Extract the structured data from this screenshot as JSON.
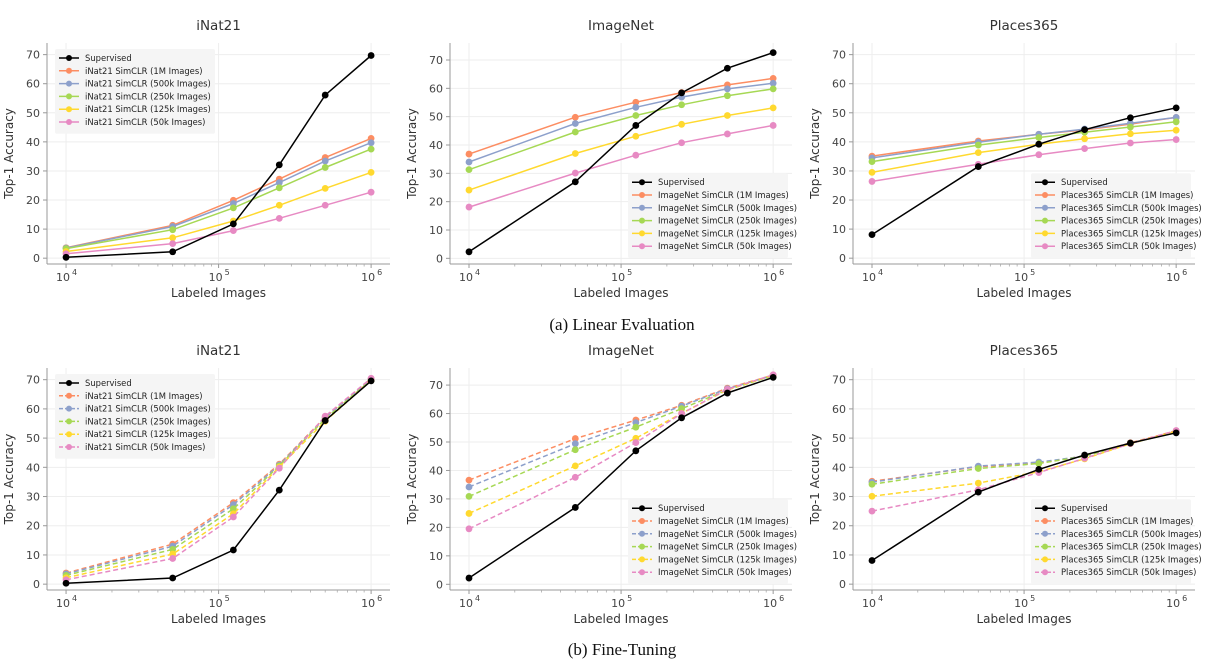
{
  "captions": [
    "(a) Linear Evaluation",
    "(b) Fine-Tuning"
  ],
  "series_colors": {
    "Supervised": "#000000",
    "1M": "#fc8d62",
    "500k": "#8da0cb",
    "250k": "#a6d854",
    "125k": "#ffd92f",
    "50k": "#e78ac3"
  },
  "chart_data": [
    {
      "type": "line",
      "row": 0,
      "col": 0,
      "title": "iNat21",
      "xlabel": "Labeled Images",
      "ylabel": "Top-1 Accuracy",
      "xscale": "log",
      "xlim": [
        7500,
        1330000
      ],
      "ylim": [
        -2,
        74
      ],
      "yticks": [
        0,
        10,
        20,
        30,
        40,
        50,
        60,
        70
      ],
      "xticks": [
        {
          "base": "10",
          "exp": "4",
          "value": 10000
        },
        {
          "base": "10",
          "exp": "5",
          "value": 100000
        },
        {
          "base": "10",
          "exp": "6",
          "value": 1000000
        }
      ],
      "legend": "top-left",
      "grid": true,
      "ssl_dashed": false,
      "x": [
        10000,
        50000,
        125000,
        250000,
        500000,
        1000000
      ],
      "series": [
        {
          "name": "Supervised",
          "key": "Supervised",
          "values": [
            0.3,
            2.2,
            11.8,
            32.1,
            56.1,
            69.7
          ]
        },
        {
          "name": "iNat21 SimCLR (1M Images)",
          "key": "1M",
          "values": [
            3.6,
            11.3,
            19.9,
            27.2,
            34.6,
            41.2
          ]
        },
        {
          "name": "iNat21 SimCLR (500k Images)",
          "key": "500k",
          "values": [
            3.5,
            10.9,
            18.8,
            26.0,
            33.4,
            39.7
          ]
        },
        {
          "name": "iNat21 SimCLR (250k Images)",
          "key": "250k",
          "values": [
            3.3,
            9.8,
            17.3,
            24.2,
            31.2,
            37.5
          ]
        },
        {
          "name": "iNat21 SimCLR (125k Images)",
          "key": "125k",
          "values": [
            2.3,
            7.0,
            12.8,
            18.2,
            24.0,
            29.5
          ]
        },
        {
          "name": "iNat21 SimCLR (50k Images)",
          "key": "50k",
          "values": [
            1.5,
            5.0,
            9.5,
            13.7,
            18.2,
            22.7
          ]
        }
      ]
    },
    {
      "type": "line",
      "row": 0,
      "col": 1,
      "title": "ImageNet",
      "xlabel": "Labeled Images",
      "ylabel": "Top-1 Accuracy",
      "xscale": "log",
      "xlim": [
        7500,
        1330000
      ],
      "ylim": [
        -2,
        76
      ],
      "yticks": [
        0,
        10,
        20,
        30,
        40,
        50,
        60,
        70
      ],
      "xticks": [
        {
          "base": "10",
          "exp": "4",
          "value": 10000
        },
        {
          "base": "10",
          "exp": "5",
          "value": 100000
        },
        {
          "base": "10",
          "exp": "6",
          "value": 1000000
        }
      ],
      "legend": "bottom-right",
      "grid": true,
      "ssl_dashed": false,
      "x": [
        10000,
        50000,
        125000,
        250000,
        500000,
        1000000
      ],
      "series": [
        {
          "name": "Supervised",
          "key": "Supervised",
          "values": [
            2.3,
            27.0,
            46.9,
            58.4,
            67.1,
            72.6
          ]
        },
        {
          "name": "ImageNet SimCLR (1M Images)",
          "key": "1M",
          "values": [
            36.8,
            49.8,
            55.1,
            58.5,
            61.2,
            63.5
          ]
        },
        {
          "name": "ImageNet SimCLR (500k Images)",
          "key": "500k",
          "values": [
            34.0,
            47.6,
            53.3,
            56.9,
            59.8,
            61.8
          ]
        },
        {
          "name": "ImageNet SimCLR (250k Images)",
          "key": "250k",
          "values": [
            31.3,
            44.6,
            50.4,
            54.2,
            57.4,
            59.8
          ]
        },
        {
          "name": "ImageNet SimCLR (125k Images)",
          "key": "125k",
          "values": [
            24.1,
            37.0,
            43.1,
            47.3,
            50.4,
            53.1
          ]
        },
        {
          "name": "ImageNet SimCLR (50k Images)",
          "key": "50k",
          "values": [
            18.1,
            30.1,
            36.4,
            40.8,
            43.9,
            46.9
          ]
        }
      ]
    },
    {
      "type": "line",
      "row": 0,
      "col": 2,
      "title": "Places365",
      "xlabel": "Labeled Images",
      "ylabel": "Top-1 Accuracy",
      "xscale": "log",
      "xlim": [
        7500,
        1330000
      ],
      "ylim": [
        -2,
        74
      ],
      "yticks": [
        0,
        10,
        20,
        30,
        40,
        50,
        60,
        70
      ],
      "xticks": [
        {
          "base": "10",
          "exp": "4",
          "value": 10000
        },
        {
          "base": "10",
          "exp": "5",
          "value": 100000
        },
        {
          "base": "10",
          "exp": "6",
          "value": 1000000
        }
      ],
      "legend": "bottom-right",
      "grid": true,
      "ssl_dashed": false,
      "x": [
        10000,
        50000,
        125000,
        250000,
        500000,
        1000000
      ],
      "series": [
        {
          "name": "Supervised",
          "key": "Supervised",
          "values": [
            8.1,
            31.5,
            39.2,
            44.2,
            48.3,
            51.7
          ]
        },
        {
          "name": "Places365 SimCLR (1M Images)",
          "key": "1M",
          "values": [
            35.1,
            40.3,
            42.6,
            44.1,
            46.1,
            48.4
          ]
        },
        {
          "name": "Places365 SimCLR (500k Images)",
          "key": "500k",
          "values": [
            34.5,
            39.9,
            42.6,
            44.4,
            46.4,
            48.4
          ]
        },
        {
          "name": "Places365 SimCLR (250k Images)",
          "key": "250k",
          "values": [
            33.2,
            38.9,
            41.5,
            43.3,
            45.1,
            46.9
          ]
        },
        {
          "name": "Places365 SimCLR (125k Images)",
          "key": "125k",
          "values": [
            29.5,
            36.3,
            39.2,
            41.1,
            42.8,
            44.0
          ]
        },
        {
          "name": "Places365 SimCLR (50k Images)",
          "key": "50k",
          "values": [
            26.4,
            32.3,
            35.6,
            37.7,
            39.6,
            40.8
          ]
        }
      ]
    },
    {
      "type": "line",
      "row": 1,
      "col": 0,
      "title": "iNat21",
      "xlabel": "Labeled Images",
      "ylabel": "Top-1 Accuracy",
      "xscale": "log",
      "xlim": [
        7500,
        1330000
      ],
      "ylim": [
        -2,
        74
      ],
      "yticks": [
        0,
        10,
        20,
        30,
        40,
        50,
        60,
        70
      ],
      "xticks": [
        {
          "base": "10",
          "exp": "4",
          "value": 10000
        },
        {
          "base": "10",
          "exp": "5",
          "value": 100000
        },
        {
          "base": "10",
          "exp": "6",
          "value": 1000000
        }
      ],
      "legend": "top-left",
      "grid": true,
      "ssl_dashed": true,
      "x": [
        10000,
        50000,
        125000,
        250000,
        500000,
        1000000
      ],
      "series": [
        {
          "name": "Supervised",
          "key": "Supervised",
          "values": [
            0.3,
            2.1,
            11.7,
            32.2,
            56.0,
            69.6
          ]
        },
        {
          "name": "iNat21 SimCLR (1M Images)",
          "key": "1M",
          "values": [
            3.8,
            13.7,
            27.9,
            41.1,
            57.2,
            70.3
          ]
        },
        {
          "name": "iNat21 SimCLR (500k Images)",
          "key": "500k",
          "values": [
            3.5,
            13.0,
            27.2,
            40.8,
            57.0,
            70.1
          ]
        },
        {
          "name": "iNat21 SimCLR (250k Images)",
          "key": "250k",
          "values": [
            3.0,
            11.9,
            25.8,
            40.5,
            56.6,
            69.9
          ]
        },
        {
          "name": "iNat21 SimCLR (125k Images)",
          "key": "125k",
          "values": [
            2.2,
            10.3,
            24.1,
            40.1,
            55.8,
            69.7
          ]
        },
        {
          "name": "iNat21 SimCLR (50k Images)",
          "key": "50k",
          "values": [
            1.5,
            8.8,
            23.0,
            39.7,
            57.5,
            70.5
          ]
        }
      ]
    },
    {
      "type": "line",
      "row": 1,
      "col": 1,
      "title": "ImageNet",
      "xlabel": "Labeled Images",
      "ylabel": "Top-1 Accuracy",
      "xscale": "log",
      "xlim": [
        7500,
        1330000
      ],
      "ylim": [
        -2,
        76
      ],
      "yticks": [
        0,
        10,
        20,
        30,
        40,
        50,
        60,
        70
      ],
      "xticks": [
        {
          "base": "10",
          "exp": "4",
          "value": 10000
        },
        {
          "base": "10",
          "exp": "5",
          "value": 100000
        },
        {
          "base": "10",
          "exp": "6",
          "value": 1000000
        }
      ],
      "legend": "bottom-right",
      "grid": true,
      "ssl_dashed": true,
      "x": [
        10000,
        50000,
        125000,
        250000,
        500000,
        1000000
      ],
      "series": [
        {
          "name": "Supervised",
          "key": "Supervised",
          "values": [
            2.2,
            27.0,
            46.9,
            58.5,
            67.2,
            72.7
          ]
        },
        {
          "name": "ImageNet SimCLR (1M Images)",
          "key": "1M",
          "values": [
            36.6,
            51.2,
            57.7,
            62.9,
            68.9,
            73.5
          ]
        },
        {
          "name": "ImageNet SimCLR (500k Images)",
          "key": "500k",
          "values": [
            34.2,
            49.4,
            56.8,
            62.6,
            68.7,
            73.4
          ]
        },
        {
          "name": "ImageNet SimCLR (250k Images)",
          "key": "250k",
          "values": [
            30.9,
            47.3,
            55.2,
            61.7,
            68.3,
            73.3
          ]
        },
        {
          "name": "ImageNet SimCLR (125k Images)",
          "key": "125k",
          "values": [
            24.9,
            41.6,
            51.3,
            60.1,
            68.3,
            73.5
          ]
        },
        {
          "name": "ImageNet SimCLR (50k Images)",
          "key": "50k",
          "values": [
            19.5,
            37.6,
            49.8,
            60.0,
            68.5,
            73.6
          ]
        }
      ]
    },
    {
      "type": "line",
      "row": 1,
      "col": 2,
      "title": "Places365",
      "xlabel": "Labeled Images",
      "ylabel": "Top-1 Accuracy",
      "xscale": "log",
      "xlim": [
        7500,
        1330000
      ],
      "ylim": [
        -2,
        74
      ],
      "yticks": [
        0,
        10,
        20,
        30,
        40,
        50,
        60,
        70
      ],
      "xticks": [
        {
          "base": "10",
          "exp": "4",
          "value": 10000
        },
        {
          "base": "10",
          "exp": "5",
          "value": 100000
        },
        {
          "base": "10",
          "exp": "6",
          "value": 1000000
        }
      ],
      "legend": "bottom-right",
      "grid": true,
      "ssl_dashed": true,
      "x": [
        10000,
        50000,
        125000,
        250000,
        500000,
        1000000
      ],
      "series": [
        {
          "name": "Supervised",
          "key": "Supervised",
          "values": [
            8.1,
            31.5,
            39.3,
            44.2,
            48.3,
            51.8
          ]
        },
        {
          "name": "Places365 SimCLR (1M Images)",
          "key": "1M",
          "values": [
            35.2,
            40.2,
            41.4,
            43.9,
            48.4,
            52.5
          ]
        },
        {
          "name": "Places365 SimCLR (500k Images)",
          "key": "500k",
          "values": [
            34.9,
            40.4,
            41.8,
            43.8,
            48.2,
            52.2
          ]
        },
        {
          "name": "Places365 SimCLR (250k Images)",
          "key": "250k",
          "values": [
            34.2,
            39.6,
            41.3,
            43.8,
            48.2,
            52.1
          ]
        },
        {
          "name": "Places365 SimCLR (125k Images)",
          "key": "125k",
          "values": [
            30.1,
            34.6,
            38.5,
            42.9,
            48.1,
            52.3
          ]
        },
        {
          "name": "Places365 SimCLR (50k Images)",
          "key": "50k",
          "values": [
            25.0,
            32.3,
            38.2,
            43.1,
            48.1,
            52.6
          ]
        }
      ]
    }
  ]
}
